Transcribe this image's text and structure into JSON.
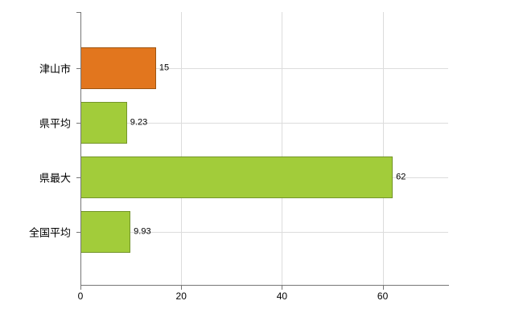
{
  "chart_data": {
    "type": "bar",
    "orientation": "horizontal",
    "title": "",
    "categories": [
      "津山市",
      "県平均",
      "県最大",
      "全国平均"
    ],
    "values": [
      15,
      9.23,
      62,
      9.93
    ],
    "value_labels": [
      "15",
      "9.23",
      "62",
      "9.93"
    ],
    "bar_colors": [
      "#e2761e",
      "#a2cc3a",
      "#a2cc3a",
      "#a2cc3a"
    ],
    "bar_border_colors": [
      "#9e5410",
      "#74952a",
      "#74952a",
      "#74952a"
    ],
    "xlim": [
      0,
      73
    ],
    "xticks": [
      0,
      20,
      40,
      60
    ],
    "xtick_labels": [
      "0",
      "20",
      "40",
      "60"
    ],
    "grid": true,
    "legend": "none",
    "colors": {
      "axis": "#767676",
      "grid": "#dcdcdc",
      "background": "#ffffff",
      "text": "#000000"
    }
  }
}
